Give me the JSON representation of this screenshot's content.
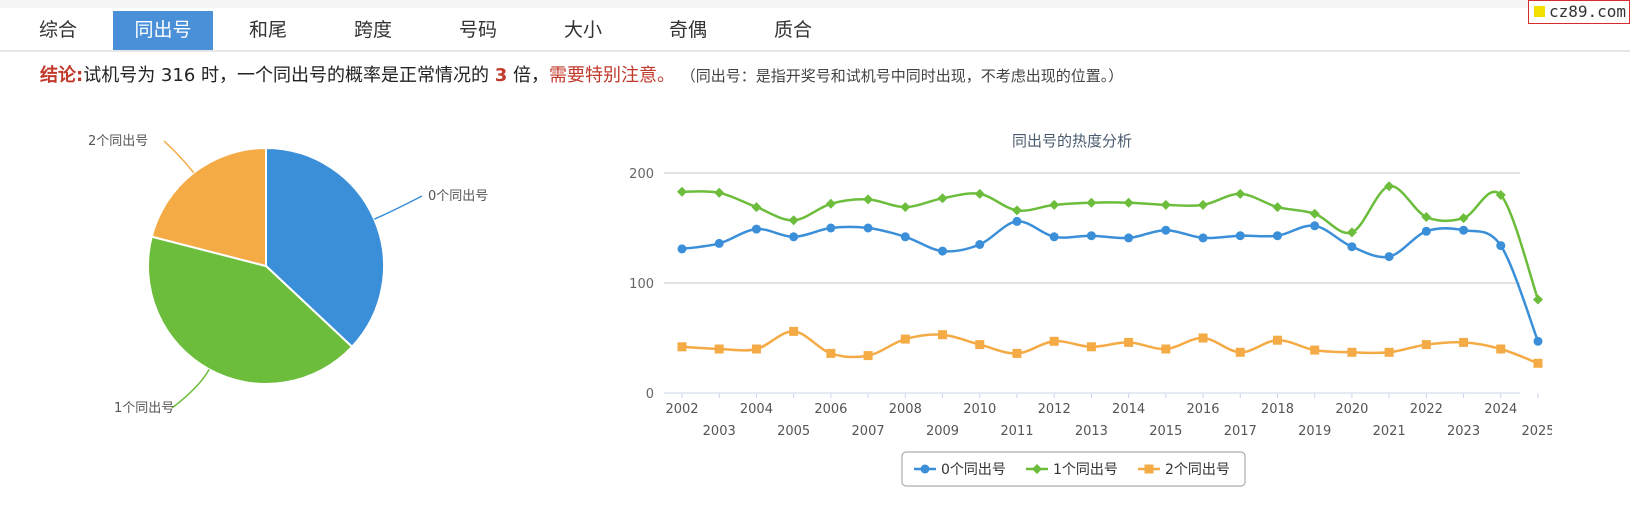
{
  "brand": {
    "text": "cz89.com"
  },
  "tabs": [
    {
      "label": "综合",
      "active": false
    },
    {
      "label": "同出号",
      "active": true
    },
    {
      "label": "和尾",
      "active": false
    },
    {
      "label": "跨度",
      "active": false
    },
    {
      "label": "号码",
      "active": false
    },
    {
      "label": "大小",
      "active": false
    },
    {
      "label": "奇偶",
      "active": false
    },
    {
      "label": "质合",
      "active": false
    }
  ],
  "conclusion": {
    "label": "结论:",
    "text1": "试机号为 316 时，一个同出号的概率是正常情况的 ",
    "multiplier": "3",
    "text2": " 倍，",
    "warning": "需要特别注意。",
    "note": "（同出号：是指开奖号和试机号中同时出现，不考虑出现的位置。）"
  },
  "colors": {
    "series0": "#3a8fd8",
    "series1": "#6cbd3c",
    "series2": "#f5ab45",
    "accent": "#c0392b",
    "tab_active": "#4a90d9"
  },
  "chart_data": [
    {
      "type": "pie",
      "labels": [
        "0个同出号",
        "1个同出号",
        "2个同出号"
      ],
      "values": [
        37,
        42,
        21
      ]
    },
    {
      "type": "line",
      "title": "同出号的热度分析",
      "x": [
        "2002",
        "2003",
        "2004",
        "2005",
        "2006",
        "2007",
        "2008",
        "2009",
        "2010",
        "2011",
        "2012",
        "2013",
        "2014",
        "2015",
        "2016",
        "2017",
        "2018",
        "2019",
        "2020",
        "2021",
        "2022",
        "2023",
        "2024",
        "2025"
      ],
      "ylim": [
        0,
        200
      ],
      "yticks": [
        0,
        100,
        200
      ],
      "grid": true,
      "legend": "bottom",
      "series": [
        {
          "name": "0个同出号",
          "marker": "circle",
          "values": [
            131,
            136,
            149,
            142,
            150,
            150,
            142,
            129,
            135,
            156,
            142,
            143,
            141,
            148,
            141,
            143,
            143,
            152,
            133,
            124,
            147,
            148,
            134,
            47
          ]
        },
        {
          "name": "1个同出号",
          "marker": "diamond",
          "values": [
            183,
            182,
            169,
            157,
            172,
            176,
            169,
            177,
            181,
            166,
            171,
            173,
            173,
            171,
            171,
            181,
            169,
            163,
            146,
            188,
            160,
            159,
            180,
            85
          ]
        },
        {
          "name": "2个同出号",
          "marker": "square",
          "values": [
            42,
            40,
            40,
            56,
            36,
            34,
            49,
            53,
            44,
            36,
            47,
            42,
            46,
            40,
            50,
            37,
            48,
            39,
            37,
            37,
            44,
            46,
            40,
            27
          ]
        }
      ]
    }
  ]
}
